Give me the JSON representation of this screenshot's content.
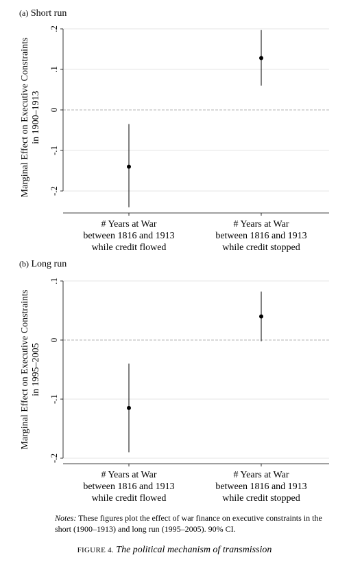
{
  "figure": {
    "number": "FIGURE 4.",
    "title": "The political mechanism of transmission",
    "notes_label": "Notes:",
    "notes_text": "These figures plot the effect of war finance on executive constraints in the short (1900–1913) and long run (1995–2005). 90% CI."
  },
  "chart_data": [
    {
      "type": "scatter",
      "panel_tag": "(a)",
      "panel_title": "Short run",
      "ylabel_lines": [
        "Marginal Effect on Executive Constraints",
        "in 1900–1913"
      ],
      "ylim": [
        -0.25,
        0.2
      ],
      "yticks": [
        0.2,
        0.1,
        0,
        -0.1,
        -0.2
      ],
      "ytick_labels": [
        ".2",
        ".1",
        "0",
        "-.1",
        "-.2"
      ],
      "zero_line": true,
      "grid": true,
      "categories": [
        [
          "# Years at War",
          "between 1816 and 1913",
          "while credit flowed"
        ],
        [
          "# Years at War",
          "between 1816 and 1913",
          "while credit stopped"
        ]
      ],
      "series": [
        {
          "estimate": -0.14,
          "ci_low": -0.24,
          "ci_high": -0.035
        },
        {
          "estimate": 0.128,
          "ci_low": 0.06,
          "ci_high": 0.197
        }
      ]
    },
    {
      "type": "scatter",
      "panel_tag": "(b)",
      "panel_title": "Long run",
      "ylabel_lines": [
        "Marginal Effect on Executive Constraints",
        "in 1995–2005"
      ],
      "ylim": [
        -0.21,
        0.11
      ],
      "yticks": [
        0.1,
        0,
        -0.1,
        -0.2
      ],
      "ytick_labels": [
        ".1",
        "0",
        "-.1",
        "-.2"
      ],
      "zero_line": true,
      "grid": true,
      "categories": [
        [
          "# Years at War",
          "between 1816 and 1913",
          "while credit flowed"
        ],
        [
          "# Years at War",
          "between 1816 and 1913",
          "while credit stopped"
        ]
      ],
      "series": [
        {
          "estimate": -0.115,
          "ci_low": -0.19,
          "ci_high": -0.04
        },
        {
          "estimate": 0.04,
          "ci_low": -0.002,
          "ci_high": 0.082
        }
      ]
    }
  ]
}
